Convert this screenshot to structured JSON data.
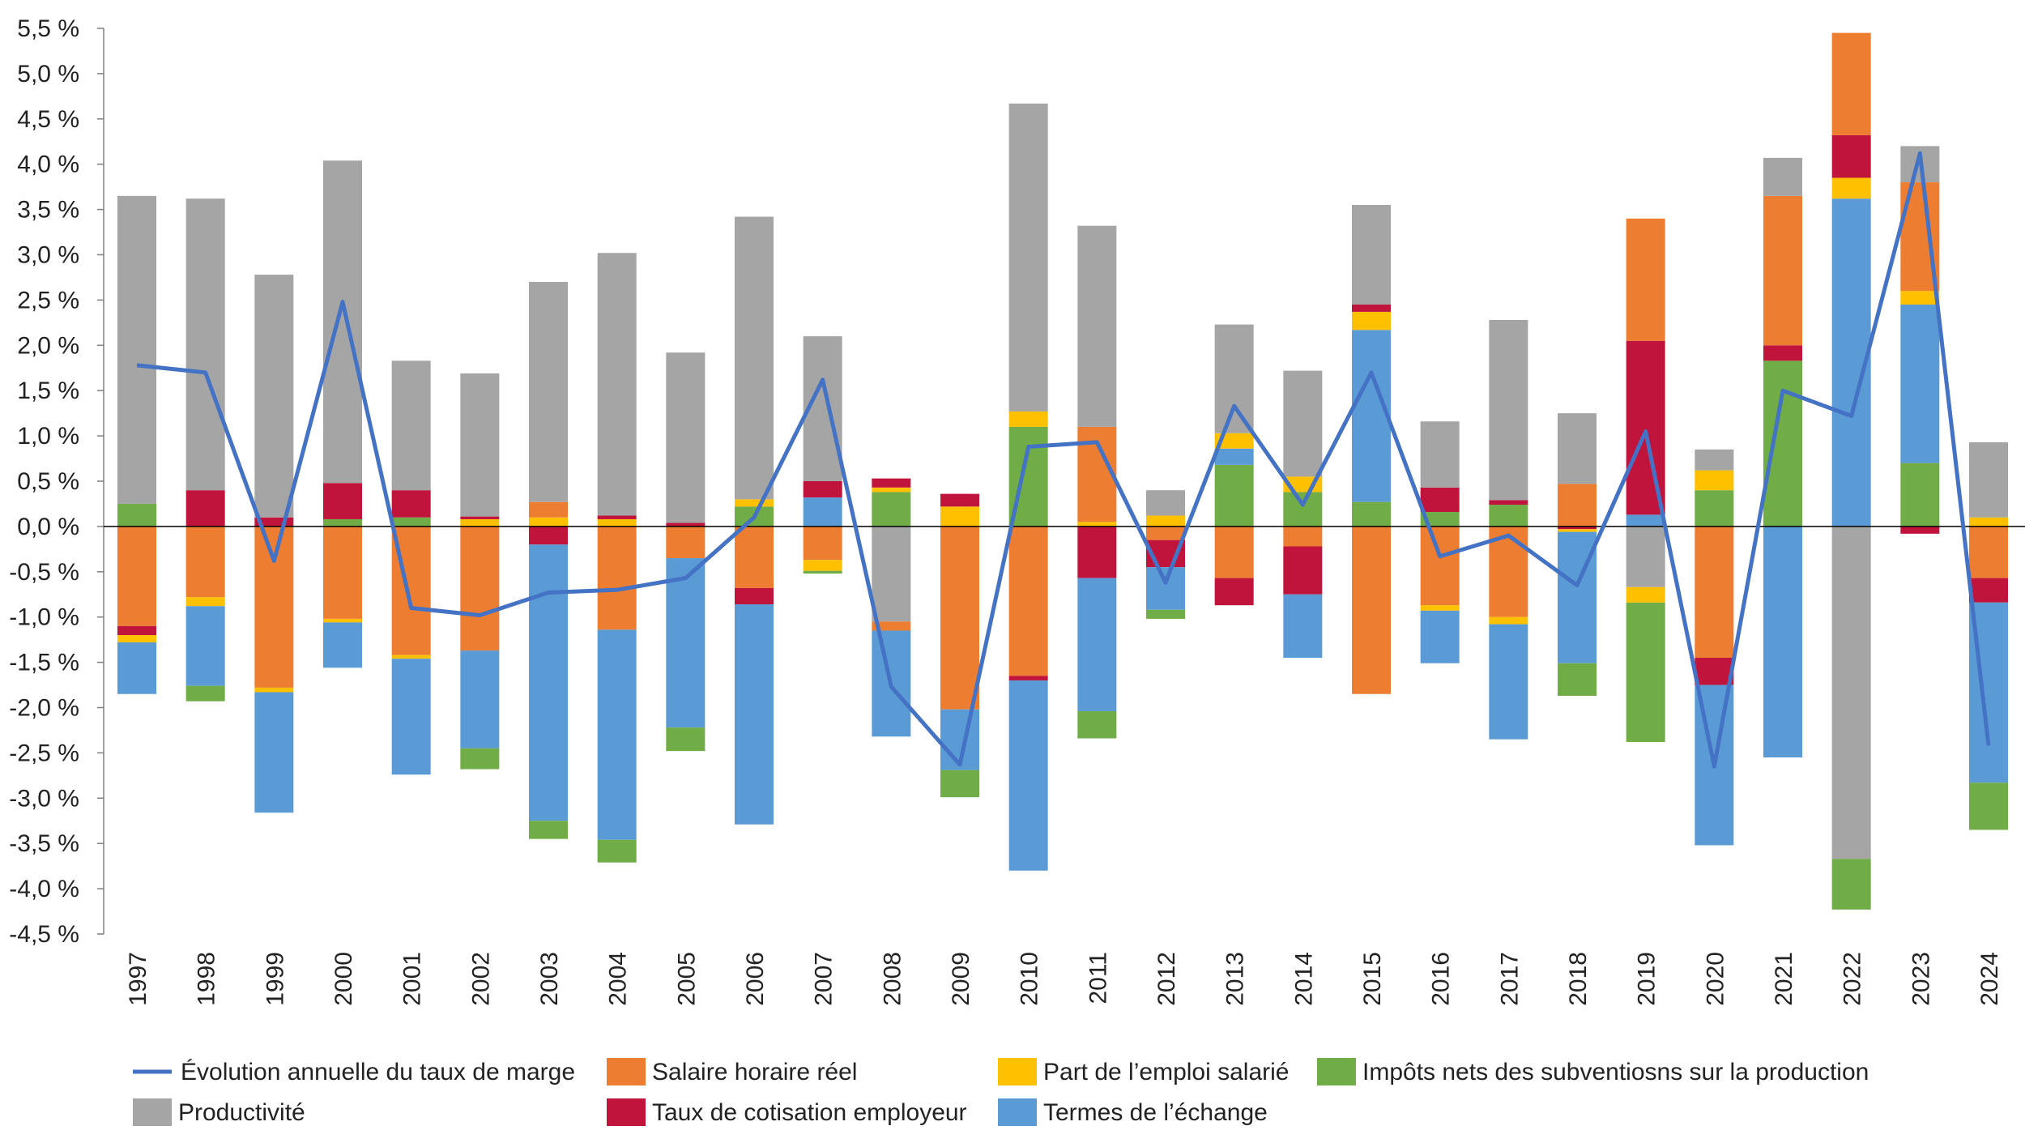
{
  "chart_data": {
    "type": "bar",
    "subtype": "stacked-bar-with-line",
    "title": "",
    "xlabel": "",
    "ylabel": "",
    "ylim": [
      -4.5,
      5.5
    ],
    "y_ticks": [
      "5,5 %",
      "5,0 %",
      "4,5 %",
      "4,0 %",
      "3,5 %",
      "3,0 %",
      "2,5 %",
      "2,0 %",
      "1,5 %",
      "1,0 %",
      "0,5 %",
      "0,0 %",
      "-0,5 %",
      "-1,0 %",
      "-1,5 %",
      "-2,0 %",
      "-2,5 %",
      "-3,0 %",
      "-3,5 %",
      "-4,0 %",
      "-4,5 %"
    ],
    "grid": false,
    "legend_position": "bottom",
    "categories": [
      "1997",
      "1998",
      "1999",
      "2000",
      "2001",
      "2002",
      "2003",
      "2004",
      "2005",
      "2006",
      "2007",
      "2008",
      "2009",
      "2010",
      "2011",
      "2012",
      "2013",
      "2014",
      "2015",
      "2016",
      "2017",
      "2018",
      "2019",
      "2020",
      "2021",
      "2022",
      "2023",
      "2024"
    ],
    "line_series": {
      "name": "Évolution annuelle du taux de marge",
      "color": "#4472C4",
      "values": [
        1.78,
        1.7,
        -0.38,
        2.48,
        -0.9,
        -0.98,
        -0.73,
        -0.7,
        -0.57,
        0.1,
        1.62,
        -1.77,
        -2.63,
        0.88,
        0.93,
        -0.62,
        1.33,
        0.24,
        1.7,
        -0.33,
        -0.1,
        -0.65,
        1.05,
        -2.65,
        1.5,
        1.22,
        4.12,
        -2.42
      ]
    },
    "series": [
      {
        "key": "G",
        "name": "Impôts nets des subventiosns sur la production",
        "color": "#70AD47",
        "values": [
          0.25,
          -0.17,
          0,
          0.08,
          0.1,
          -0.23,
          -0.2,
          -0.25,
          -0.26,
          0.22,
          -0.03,
          0.38,
          -0.3,
          1.1,
          -0.3,
          -0.1,
          0.68,
          0.38,
          0.27,
          0.16,
          0.24,
          -0.36,
          -1.54,
          0.4,
          1.83,
          -0.56,
          0.7,
          -0.52
        ]
      },
      {
        "key": "B",
        "name": "Termes de l’échange",
        "color": "#5B9BD5",
        "values": [
          -0.57,
          -0.88,
          -1.33,
          -0.5,
          -1.28,
          -1.08,
          -3.05,
          -2.32,
          -1.87,
          -2.43,
          0.32,
          -1.17,
          -0.67,
          -2.1,
          -1.47,
          -0.47,
          0.18,
          -0.7,
          1.9,
          -0.58,
          -1.27,
          -1.45,
          0.13,
          -1.77,
          -2.55,
          3.62,
          1.75,
          -1.99
        ]
      },
      {
        "key": "Y",
        "name": "Part de l’emploi salarié",
        "color": "#FFC000",
        "values": [
          -0.08,
          -0.1,
          -0.05,
          -0.04,
          -0.04,
          0.08,
          0.1,
          0.08,
          0,
          0.08,
          -0.12,
          0.05,
          0.22,
          0.17,
          0.05,
          0.12,
          0.17,
          0.17,
          0.2,
          -0.06,
          -0.08,
          -0.03,
          -0.17,
          0.22,
          0,
          0.23,
          0.15,
          0.1
        ]
      },
      {
        "key": "R",
        "name": "Taux de cotisation employeur",
        "color": "#C0143C",
        "values": [
          -0.1,
          0.4,
          0.1,
          0.4,
          0.3,
          0.03,
          -0.2,
          0.04,
          0.04,
          -0.18,
          0.18,
          0.1,
          0.14,
          -0.05,
          -0.57,
          -0.3,
          -0.3,
          -0.53,
          0.08,
          0.27,
          0.05,
          -0.03,
          1.92,
          -0.3,
          0.17,
          0.47,
          -0.08,
          -0.27
        ]
      },
      {
        "key": "O",
        "name": "Salaire horaire réel",
        "color": "#ED7D31",
        "values": [
          -1.1,
          -0.78,
          -1.78,
          -1.02,
          -1.42,
          -1.37,
          0.17,
          -1.14,
          -0.35,
          -0.68,
          -0.37,
          -0.1,
          -2.02,
          -1.65,
          1.05,
          -0.15,
          -0.57,
          -0.22,
          -1.85,
          -0.87,
          -1.0,
          0.47,
          1.35,
          -1.45,
          1.65,
          1.13,
          1.2,
          -0.57
        ]
      },
      {
        "key": "P",
        "name": "Productivité",
        "color": "#A5A5A5",
        "values": [
          3.4,
          3.22,
          2.68,
          3.56,
          1.43,
          1.58,
          2.43,
          2.9,
          1.88,
          3.12,
          1.6,
          -1.05,
          0,
          3.4,
          2.22,
          0.28,
          1.2,
          1.17,
          1.1,
          0.73,
          1.99,
          0.78,
          -0.67,
          0.23,
          0.42,
          -3.67,
          0.4,
          0.83
        ]
      }
    ],
    "positive_stack_order": [
      "G",
      "B",
      "Y",
      "R",
      "O",
      "P"
    ],
    "negative_stack_order": [
      "P",
      "O",
      "R",
      "Y",
      "B",
      "G"
    ],
    "legend": [
      {
        "label": "Évolution annuelle du taux de marge",
        "kind": "line",
        "color": "#4472C4"
      },
      {
        "label": "Salaire horaire réel",
        "kind": "box",
        "color": "#ED7D31"
      },
      {
        "label": "Part de l’emploi salarié",
        "kind": "box",
        "color": "#FFC000"
      },
      {
        "label": "Impôts nets des subventiosns sur la production",
        "kind": "box",
        "color": "#70AD47"
      },
      {
        "label": "Productivité",
        "kind": "box",
        "color": "#A5A5A5"
      },
      {
        "label": "Taux de cotisation employeur",
        "kind": "box",
        "color": "#C0143C"
      },
      {
        "label": "Termes de l’échange",
        "kind": "box",
        "color": "#5B9BD5"
      }
    ]
  }
}
